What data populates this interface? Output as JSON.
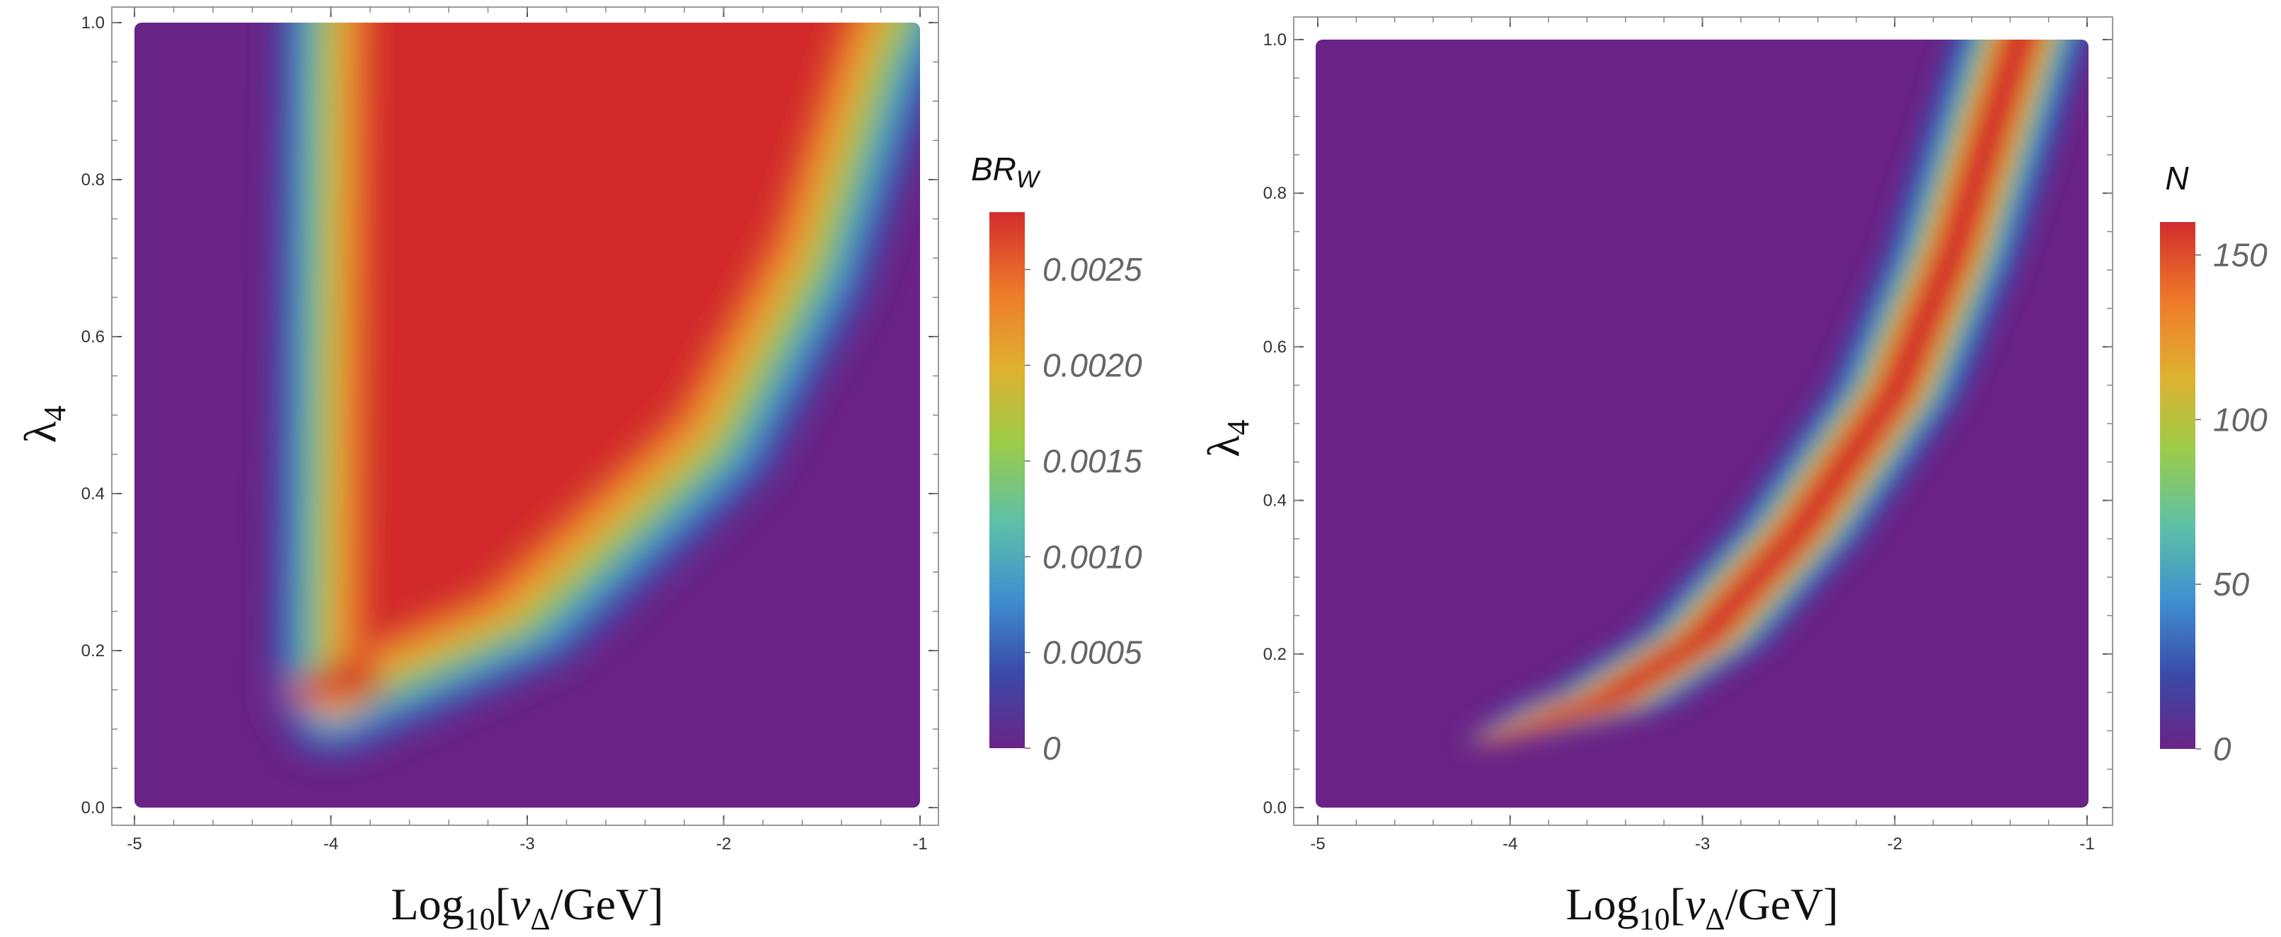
{
  "chart_data": [
    {
      "type": "heatmap",
      "title": "",
      "xlabel": {
        "prefix": "Log",
        "sub": "10",
        "bracket": "[",
        "var": "v",
        "var_sub": "Δ",
        "rest": "/GeV]"
      },
      "ylabel": {
        "main": "λ",
        "sub": "4"
      },
      "xlim": [
        -5,
        -1
      ],
      "ylim": [
        0,
        1
      ],
      "x_ticks": [
        "-5",
        "-4",
        "-3",
        "-2",
        "-1"
      ],
      "y_ticks": [
        "0.0",
        "0.2",
        "0.4",
        "0.6",
        "0.8",
        "1.0"
      ],
      "z_range": [
        0,
        0.0028
      ],
      "colorbar": {
        "title": {
          "main": "BR",
          "sub": "W"
        },
        "ticks": [
          "0",
          "0.0005",
          "0.0010",
          "0.0015",
          "0.0020",
          "0.0025"
        ],
        "tick_values": [
          0,
          0.0005,
          0.001,
          0.0015,
          0.002,
          0.0025
        ],
        "max": 0.0028
      },
      "region": {
        "description": "high BR_W region bounded on the left near x=-4.2 and on the right by a curve rising from about (-4, 0.1) to (-1.2, 1.0)",
        "left_edge_x": [
          -4.05,
          -4.2
        ],
        "lower_boundary": [
          [
            -4.1,
            0.1
          ],
          [
            -3.0,
            0.22
          ],
          [
            -2.0,
            0.45
          ],
          [
            -1.5,
            0.68
          ],
          [
            -1.15,
            0.95
          ],
          [
            -1.05,
            1.0
          ]
        ]
      },
      "colormap": [
        "#6a2386",
        "#3a4aa8",
        "#3f8fd0",
        "#5cc0a8",
        "#9ccc48",
        "#e0b030",
        "#ef7a2a",
        "#d22c2c"
      ]
    },
    {
      "type": "heatmap",
      "title": "",
      "xlabel": {
        "prefix": "Log",
        "sub": "10",
        "bracket": "[",
        "var": "v",
        "var_sub": "Δ",
        "rest": "/GeV]"
      },
      "ylabel": {
        "main": "λ",
        "sub": "4"
      },
      "xlim": [
        -5,
        -1
      ],
      "ylim": [
        0,
        1
      ],
      "x_ticks": [
        "-5",
        "-4",
        "-3",
        "-2",
        "-1"
      ],
      "y_ticks": [
        "0.0",
        "0.2",
        "0.4",
        "0.6",
        "0.8",
        "1.0"
      ],
      "z_range": [
        0,
        160
      ],
      "colorbar": {
        "title": {
          "main": "N",
          "sub": ""
        },
        "ticks": [
          "0",
          "50",
          "100",
          "150"
        ],
        "tick_values": [
          0,
          50,
          100,
          150
        ],
        "max": 160
      },
      "band": {
        "description": "narrow band of high N following a curve from about (-4.1, 0.09) to (-1.4, 1.0)",
        "ridge": [
          [
            -4.15,
            0.085
          ],
          [
            -3.5,
            0.14
          ],
          [
            -3.0,
            0.22
          ],
          [
            -2.5,
            0.36
          ],
          [
            -2.0,
            0.54
          ],
          [
            -1.7,
            0.72
          ],
          [
            -1.45,
            0.92
          ],
          [
            -1.35,
            1.0
          ]
        ],
        "half_width_x": 0.28
      },
      "colormap": [
        "#6a2386",
        "#3a4aa8",
        "#3f8fd0",
        "#5cc0a8",
        "#9ccc48",
        "#e0b030",
        "#ef7a2a",
        "#d22c2c"
      ]
    }
  ]
}
